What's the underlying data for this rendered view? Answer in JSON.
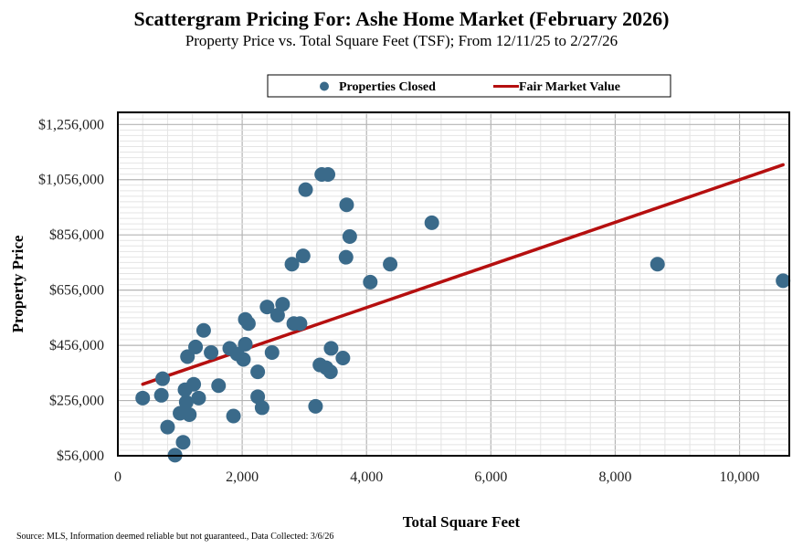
{
  "chart_data": {
    "type": "scatter",
    "title": "Scattergram Pricing For: Ashe Home Market (February 2026)",
    "subtitle": "Property Price vs. Total Square Feet (TSF); From 12/11/25 to 2/27/26",
    "xlabel": "Total Square Feet",
    "ylabel": "Property Price",
    "xlim": [
      0,
      10800
    ],
    "ylim": [
      56000,
      1300000
    ],
    "x_ticks": [
      0,
      2000,
      4000,
      6000,
      8000,
      10000
    ],
    "x_tick_labels": [
      "0",
      "2,000",
      "4,000",
      "6,000",
      "8,000",
      "10,000"
    ],
    "y_ticks": [
      56000,
      256000,
      456000,
      656000,
      856000,
      1056000,
      1256000
    ],
    "y_tick_labels": [
      "$56,000",
      "$256,000",
      "$456,000",
      "$656,000",
      "$856,000",
      "$1,056,000",
      "$1,256,000"
    ],
    "grid": true,
    "legend": {
      "placement": "top-center",
      "entries": [
        "Properties Closed",
        "Fair Market Value"
      ]
    },
    "series": [
      {
        "name": "Properties Closed",
        "type": "scatter",
        "color": "#3a6a8a",
        "points": [
          [
            400,
            265000
          ],
          [
            700,
            275000
          ],
          [
            720,
            335000
          ],
          [
            800,
            160000
          ],
          [
            920,
            58000
          ],
          [
            1000,
            210000
          ],
          [
            1050,
            105000
          ],
          [
            1080,
            295000
          ],
          [
            1100,
            250000
          ],
          [
            1120,
            415000
          ],
          [
            1150,
            205000
          ],
          [
            1220,
            315000
          ],
          [
            1250,
            450000
          ],
          [
            1300,
            265000
          ],
          [
            1380,
            510000
          ],
          [
            1500,
            430000
          ],
          [
            1620,
            310000
          ],
          [
            1800,
            445000
          ],
          [
            1860,
            200000
          ],
          [
            1920,
            425000
          ],
          [
            2020,
            405000
          ],
          [
            2050,
            460000
          ],
          [
            2050,
            550000
          ],
          [
            2100,
            535000
          ],
          [
            2250,
            360000
          ],
          [
            2250,
            270000
          ],
          [
            2320,
            230000
          ],
          [
            2400,
            595000
          ],
          [
            2480,
            430000
          ],
          [
            2570,
            565000
          ],
          [
            2650,
            605000
          ],
          [
            2800,
            750000
          ],
          [
            2830,
            535000
          ],
          [
            2930,
            535000
          ],
          [
            2980,
            780000
          ],
          [
            3020,
            1020000
          ],
          [
            3180,
            235000
          ],
          [
            3250,
            385000
          ],
          [
            3280,
            1075000
          ],
          [
            3350,
            375000
          ],
          [
            3380,
            1075000
          ],
          [
            3420,
            360000
          ],
          [
            3430,
            445000
          ],
          [
            3620,
            410000
          ],
          [
            3670,
            775000
          ],
          [
            3680,
            965000
          ],
          [
            3730,
            850000
          ],
          [
            4060,
            685000
          ],
          [
            4380,
            750000
          ],
          [
            5050,
            900000
          ],
          [
            8680,
            750000
          ],
          [
            10700,
            690000
          ]
        ]
      },
      {
        "name": "Fair Market Value",
        "type": "line",
        "color": "#b50f0f",
        "points": [
          [
            400,
            315000
          ],
          [
            10700,
            1110000
          ]
        ]
      }
    ]
  },
  "source_note": "Source: MLS, Information deemed reliable but not guaranteed., Data Collected: 3/6/26"
}
